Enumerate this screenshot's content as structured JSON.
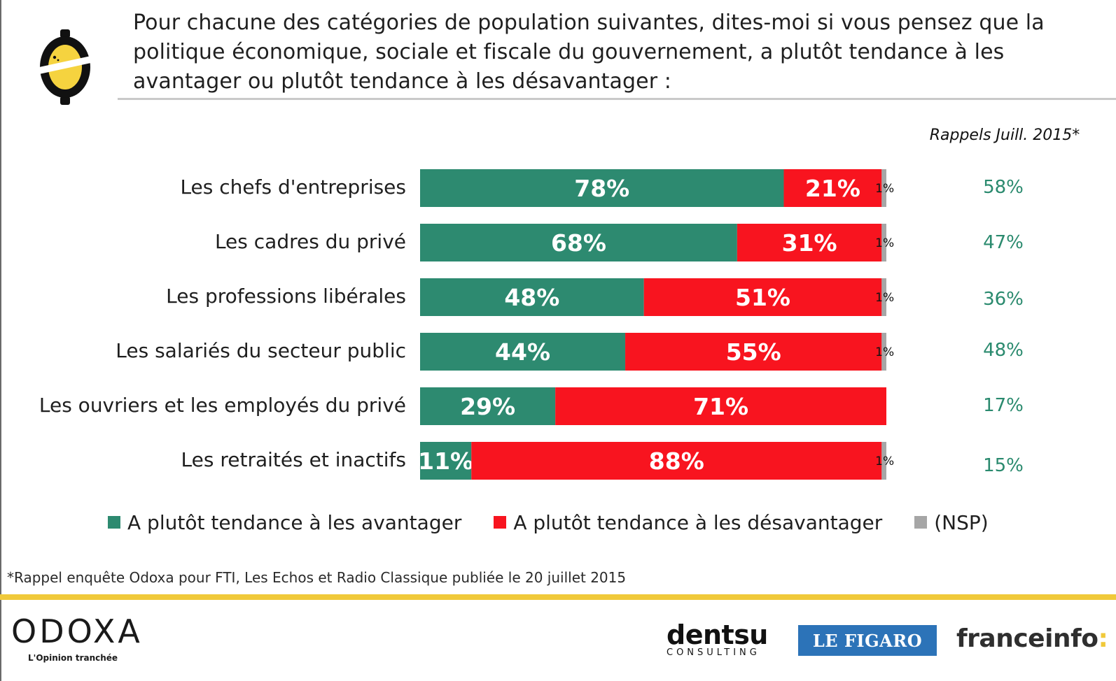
{
  "header": {
    "question": "Pour chacune des catégories de population suivantes, dites-moi si vous pensez que la politique économique, sociale et fiscale du gouvernement, a plutôt tendance à les avantager ou plutôt tendance à les désavantager :",
    "recall_header": "Rappels Juill. 2015*"
  },
  "chart_data": {
    "type": "bar",
    "orientation": "horizontal",
    "stacked": true,
    "categories": [
      "Les chefs d'entreprises",
      "Les cadres du privé",
      "Les professions libérales",
      "Les salariés du secteur public",
      "Les ouvriers et les employés du privé",
      "Les retraités et inactifs"
    ],
    "series": [
      {
        "name": "A plutôt tendance à les avantager",
        "color": "#2d8a70",
        "values": [
          78,
          68,
          48,
          44,
          29,
          11
        ],
        "labels": [
          "78%",
          "68%",
          "48%",
          "44%",
          "29%",
          "11%"
        ]
      },
      {
        "name": "A plutôt tendance à les désavantager",
        "color": "#f8141f",
        "values": [
          21,
          31,
          51,
          55,
          71,
          88
        ],
        "labels": [
          "21%",
          "31%",
          "51%",
          "55%",
          "71%",
          "88%"
        ]
      },
      {
        "name": "(NSP)",
        "color": "#a6a6a6",
        "values": [
          1,
          1,
          1,
          1,
          0,
          1
        ],
        "labels": [
          "1%",
          "1%",
          "1%",
          "1%",
          "",
          "1%"
        ]
      }
    ],
    "recall_values": [
      "58%",
      "47%",
      "36%",
      "48%",
      "17%",
      "15%"
    ],
    "xlim": [
      0,
      100
    ],
    "legend_position": "bottom",
    "grid": false
  },
  "footnote": "*Rappel enquête Odoxa pour FTI, Les Echos et Radio Classique publiée le 20 juillet 2015",
  "footer": {
    "brand": "ODOXA",
    "tagline": "L'Opinion tranchée",
    "partners": {
      "dentsu": "dentsu",
      "dentsu_sub": "CONSULTING",
      "figaro": "LE FIGARO",
      "franceinfo": "franceinfo",
      "franceinfo_colon": ":"
    }
  },
  "colors": {
    "accent_yellow": "#f0c93a",
    "recall_green": "#2a8a6e"
  },
  "icons": {
    "logo": "lemon-slice-icon"
  }
}
